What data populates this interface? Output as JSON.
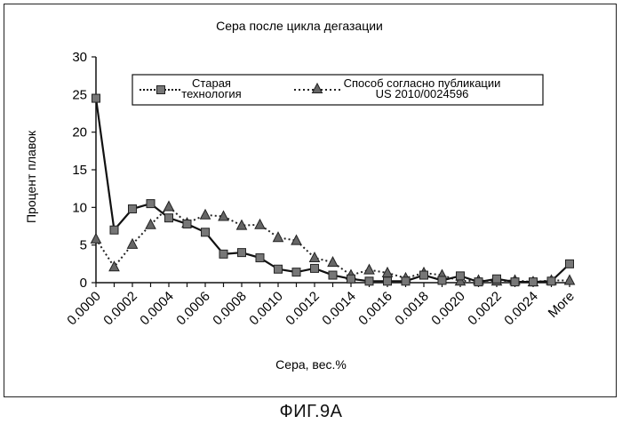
{
  "chart_data": {
    "type": "line",
    "title": "Сера после цикла дегазации",
    "xlabel": "Сера, вес.%",
    "ylabel": "Процент плавок",
    "ylim": [
      0,
      30
    ],
    "yticks": [
      "0",
      "5",
      "10",
      "15",
      "20",
      "25",
      "30"
    ],
    "categories": [
      "0.0000",
      "0.0001",
      "0.0002",
      "0.0003",
      "0.0004",
      "0.0005",
      "0.0006",
      "0.0007",
      "0.0008",
      "0.0009",
      "0.0010",
      "0.0011",
      "0.0012",
      "0.0013",
      "0.0014",
      "0.0015",
      "0.0016",
      "0.0017",
      "0.0018",
      "0.0019",
      "0.0020",
      "0.0021",
      "0.0022",
      "0.0023",
      "0.0024",
      "0.0025",
      "More"
    ],
    "xtick_labels": [
      "0.0000",
      "",
      "0.0002",
      "",
      "0.0004",
      "",
      "0.0006",
      "",
      "0.0008",
      "",
      "0.0010",
      "",
      "0.0012",
      "",
      "0.0014",
      "",
      "0.0016",
      "",
      "0.0018",
      "",
      "0.0020",
      "",
      "0.0022",
      "",
      "0.0024",
      "",
      "More"
    ],
    "grid": false,
    "legend_position": "top",
    "series": [
      {
        "name": "Старая технология",
        "name_lines": [
          "Старая",
          "технология"
        ],
        "marker": "square",
        "line_style": "solid",
        "values": [
          24.5,
          7.0,
          9.8,
          10.5,
          8.6,
          7.8,
          6.7,
          3.8,
          4.0,
          3.3,
          1.8,
          1.4,
          1.9,
          1.0,
          0.5,
          0.2,
          0.2,
          0.2,
          1.0,
          0.3,
          0.9,
          0.1,
          0.5,
          0.1,
          0.1,
          0.2,
          2.5
        ]
      },
      {
        "name": "Способ согласно публикации US 2010/0024596",
        "name_lines": [
          "Способ согласно публикации",
          "US 2010/0024596"
        ],
        "marker": "triangle",
        "line_style": "dotted",
        "values": [
          5.8,
          2.1,
          5.1,
          7.7,
          10.1,
          7.9,
          9.0,
          8.8,
          7.6,
          7.7,
          6.0,
          5.6,
          3.3,
          2.7,
          1.0,
          1.7,
          1.3,
          0.6,
          1.3,
          1.0,
          0.2,
          0.3,
          0.2,
          0.3,
          0.1,
          0.3,
          0.3
        ]
      }
    ]
  },
  "figure_caption": "ФИГ.9A"
}
